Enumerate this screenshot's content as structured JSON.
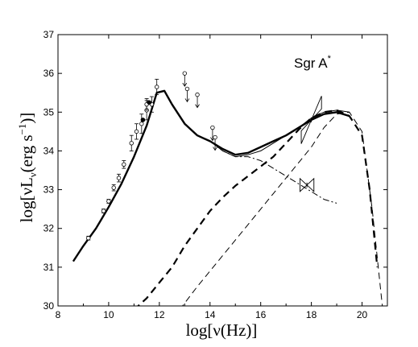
{
  "chart_data": {
    "type": "line",
    "title": "",
    "annotation": {
      "text": "Sgr A",
      "superscript": "*"
    },
    "xlabel": {
      "pre": "log[",
      "nu": "ν",
      "post": "(Hz)]"
    },
    "ylabel": {
      "pre": "log[",
      "nu": "ν",
      "L": "L",
      "sub": "ν",
      "units": "(erg s",
      "exp": "−1",
      "close": ")]"
    },
    "xlim": [
      8,
      21
    ],
    "ylim": [
      30,
      37
    ],
    "xticks": [
      8,
      10,
      12,
      14,
      16,
      18,
      20
    ],
    "xtick_labels": [
      "8",
      "10",
      "12",
      "14",
      "16",
      "18",
      "20"
    ],
    "yticks": [
      30,
      31,
      32,
      33,
      34,
      35,
      36,
      37
    ],
    "ytick_labels": [
      "30",
      "31",
      "32",
      "33",
      "34",
      "35",
      "36",
      "37"
    ],
    "grid": false,
    "legend": "none",
    "series": [
      {
        "style": "thick-solid",
        "x": [
          8.6,
          9.0,
          9.5,
          10.0,
          10.5,
          11.0,
          11.5,
          11.9,
          12.2,
          12.5,
          13.0,
          13.5,
          14.0,
          14.5,
          15.0,
          15.5,
          16.0,
          16.5,
          17.0,
          17.5,
          18.0,
          18.5,
          19.0,
          19.5
        ],
        "y": [
          31.15,
          31.55,
          32.0,
          32.55,
          33.15,
          33.85,
          34.65,
          35.5,
          35.55,
          35.2,
          34.7,
          34.4,
          34.25,
          34.05,
          33.9,
          33.95,
          34.1,
          34.25,
          34.4,
          34.6,
          34.8,
          34.95,
          35.0,
          34.9
        ]
      },
      {
        "style": "thin-solid",
        "x": [
          14.0,
          14.5,
          15.0,
          15.5,
          16.0,
          16.5,
          17.0,
          17.5,
          18.0,
          18.5,
          19.0,
          19.5
        ],
        "y": [
          34.25,
          34.0,
          33.85,
          33.9,
          34.0,
          34.2,
          34.4,
          34.6,
          34.85,
          35.0,
          35.05,
          35.0
        ]
      },
      {
        "style": "thick-dash",
        "x": [
          11.0,
          11.5,
          12.0,
          12.5,
          13.0,
          13.5,
          14.0,
          14.5,
          15.0,
          15.5,
          16.0,
          16.5,
          17.0,
          17.5,
          18.0,
          18.5,
          19.0,
          19.5,
          20.0,
          20.3,
          20.6
        ],
        "y": [
          29.9,
          30.2,
          30.6,
          31.0,
          31.55,
          32.0,
          32.45,
          32.8,
          33.1,
          33.35,
          33.6,
          33.85,
          34.2,
          34.55,
          34.85,
          35.0,
          35.05,
          34.9,
          34.4,
          33.0,
          31.0
        ]
      },
      {
        "style": "thin-dash",
        "x": [
          12.8,
          13.5,
          14.5,
          15.5,
          16.5,
          17.5,
          18.0,
          18.5,
          19.0,
          19.5,
          20.0,
          20.4,
          20.8
        ],
        "y": [
          29.9,
          30.5,
          31.3,
          32.1,
          32.9,
          33.7,
          34.1,
          34.6,
          34.95,
          35.0,
          34.5,
          32.5,
          30.0
        ]
      },
      {
        "style": "thin-dashdot",
        "x": [
          14.0,
          14.5,
          15.0,
          15.5,
          16.0,
          16.5,
          17.0,
          17.5,
          18.0,
          18.5,
          19.0
        ],
        "y": [
          34.25,
          34.0,
          33.85,
          33.85,
          33.75,
          33.55,
          33.35,
          33.15,
          32.95,
          32.75,
          32.65
        ]
      }
    ],
    "data_points": {
      "x": [
        9.2,
        9.8,
        10.0,
        10.2,
        10.4,
        10.6,
        10.9,
        11.1,
        11.3,
        11.5,
        11.5,
        11.7,
        11.9
      ],
      "y": [
        31.75,
        32.45,
        32.7,
        33.05,
        33.3,
        33.65,
        34.2,
        34.5,
        34.7,
        35.05,
        35.2,
        35.2,
        35.65
      ],
      "err": [
        0.05,
        0.05,
        0.05,
        0.08,
        0.1,
        0.1,
        0.2,
        0.2,
        0.25,
        0.25,
        0.15,
        0.2,
        0.2
      ]
    },
    "filled_points": {
      "x": [
        11.35,
        11.6
      ],
      "y": [
        34.8,
        35.25
      ]
    },
    "upper_limits": {
      "x": [
        13.0,
        13.1,
        13.5,
        14.1,
        14.2
      ],
      "y": [
        36.0,
        35.6,
        35.45,
        34.6,
        34.35
      ]
    },
    "bowties": [
      {
        "x": [
          17.6,
          18.4
        ],
        "y": [
          34.35,
          35.25
        ]
      },
      {
        "x": [
          17.55,
          18.1
        ],
        "y": [
          33.12,
          33.12
        ]
      }
    ]
  }
}
